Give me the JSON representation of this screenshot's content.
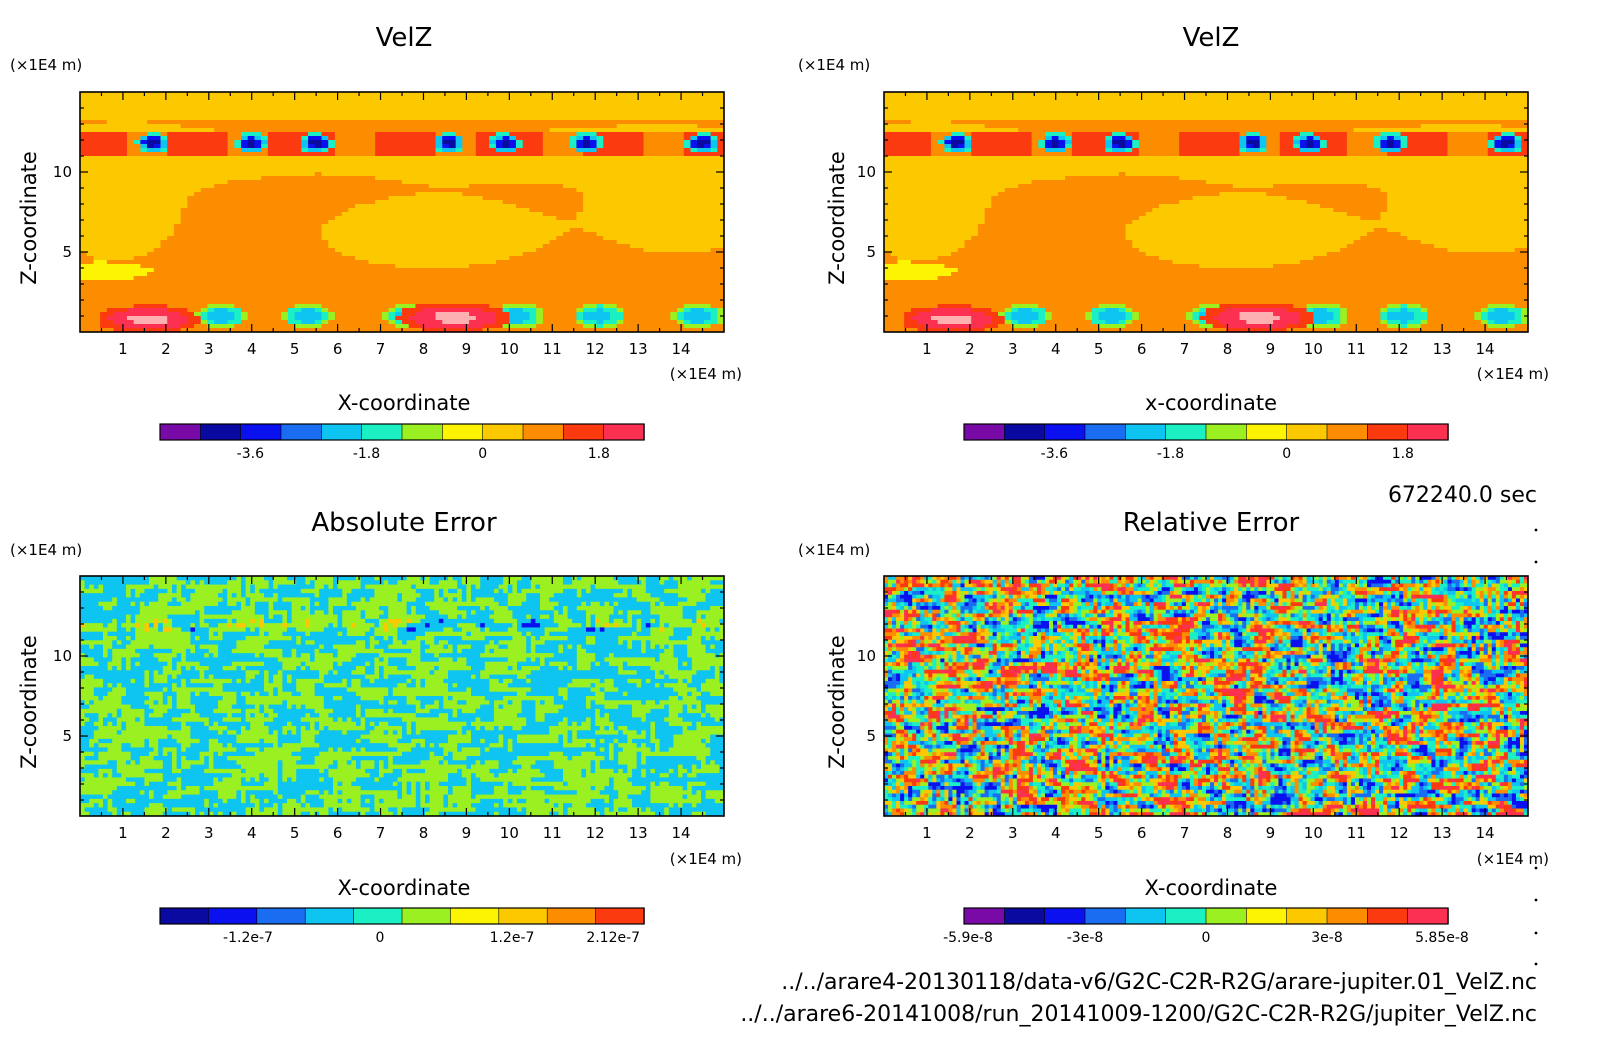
{
  "colors": {
    "palette": [
      "#7a0aa8",
      "#0a0aa0",
      "#0a10ee",
      "#1a6cf0",
      "#0ec4f0",
      "#1af0c4",
      "#9af020",
      "#fcf400",
      "#fcc800",
      "#fc8c00",
      "#fc3a10",
      "#fc3050",
      "#fcb0b0"
    ],
    "frame": "#000000"
  },
  "chart_data": [
    {
      "type": "heatmap",
      "title": "VelZ",
      "xlabel": "X-coordinate",
      "ylabel": "Z-coordinate",
      "x_unit": "(×1E4 m)",
      "y_unit": "(×1E4 m)",
      "xlim": [
        0,
        15
      ],
      "ylim": [
        0,
        15
      ],
      "x_ticks": [
        "1",
        "2",
        "3",
        "4",
        "5",
        "6",
        "7",
        "8",
        "9",
        "10",
        "11",
        "12",
        "13",
        "14"
      ],
      "y_ticks": [
        "5",
        "10"
      ],
      "pattern": "velz",
      "colorbar": {
        "n_bands": 12,
        "palette_offset": 0,
        "labels": [
          {
            "text": "-3.6",
            "value": -3.6
          },
          {
            "text": "-1.8",
            "value": -1.8
          },
          {
            "text": "0",
            "value": 0
          },
          {
            "text": "1.8",
            "value": 1.8
          }
        ],
        "range": [
          -5.0,
          2.5
        ]
      }
    },
    {
      "type": "heatmap",
      "title": "VelZ",
      "xlabel": "x-coordinate",
      "ylabel": "Z-coordinate",
      "x_unit": "(×1E4 m)",
      "y_unit": "(×1E4 m)",
      "xlim": [
        0,
        15
      ],
      "ylim": [
        0,
        15
      ],
      "x_ticks": [
        "1",
        "2",
        "3",
        "4",
        "5",
        "6",
        "7",
        "8",
        "9",
        "10",
        "11",
        "12",
        "13",
        "14"
      ],
      "y_ticks": [
        "5",
        "10"
      ],
      "pattern": "velz",
      "colorbar": {
        "n_bands": 12,
        "palette_offset": 0,
        "labels": [
          {
            "text": "-3.6",
            "value": -3.6
          },
          {
            "text": "-1.8",
            "value": -1.8
          },
          {
            "text": "0",
            "value": 0
          },
          {
            "text": "1.8",
            "value": 1.8
          }
        ],
        "range": [
          -5.0,
          2.5
        ]
      }
    },
    {
      "type": "heatmap",
      "title": "Absolute Error",
      "xlabel": "X-coordinate",
      "ylabel": "Z-coordinate",
      "x_unit": "(×1E4 m)",
      "y_unit": "(×1E4 m)",
      "xlim": [
        0,
        15
      ],
      "ylim": [
        0,
        15
      ],
      "x_ticks": [
        "1",
        "2",
        "3",
        "4",
        "5",
        "6",
        "7",
        "8",
        "9",
        "10",
        "11",
        "12",
        "13",
        "14"
      ],
      "y_ticks": [
        "5",
        "10"
      ],
      "pattern": "abs",
      "colorbar": {
        "n_bands": 10,
        "palette_offset": 1,
        "labels": [
          {
            "text": "-1.2e-7",
            "value": -1.2e-07
          },
          {
            "text": "0",
            "value": 0
          },
          {
            "text": "1.2e-7",
            "value": 1.2e-07
          },
          {
            "text": "2.12e-7",
            "value": 2.12e-07
          }
        ],
        "range": [
          -2e-07,
          2.4e-07
        ]
      }
    },
    {
      "type": "heatmap",
      "title": "Relative Error",
      "xlabel": "X-coordinate",
      "ylabel": "Z-coordinate",
      "x_unit": "(×1E4 m)",
      "y_unit": "(×1E4 m)",
      "xlim": [
        0,
        15
      ],
      "ylim": [
        0,
        15
      ],
      "x_ticks": [
        "1",
        "2",
        "3",
        "4",
        "5",
        "6",
        "7",
        "8",
        "9",
        "10",
        "11",
        "12",
        "13",
        "14"
      ],
      "y_ticks": [
        "5",
        "10"
      ],
      "pattern": "rel",
      "colorbar": {
        "n_bands": 12,
        "palette_offset": 0,
        "labels": [
          {
            "text": "-5.9e-8",
            "value": -5.9e-08
          },
          {
            "text": "-3e-8",
            "value": -3e-08
          },
          {
            "text": "0",
            "value": 0
          },
          {
            "text": "3e-8",
            "value": 3e-08
          },
          {
            "text": "5.85e-8",
            "value": 5.85e-08
          }
        ],
        "range": [
          -6e-08,
          6e-08
        ]
      }
    }
  ],
  "time_label": "672240.0 sec",
  "files": [
    "../../arare4-20130118/data-v6/G2C-C2R-R2G/arare-jupiter.01_VelZ.nc",
    "../../arare6-20141008/run_20141009-1200/G2C-C2R-R2G/jupiter_VelZ.nc"
  ]
}
